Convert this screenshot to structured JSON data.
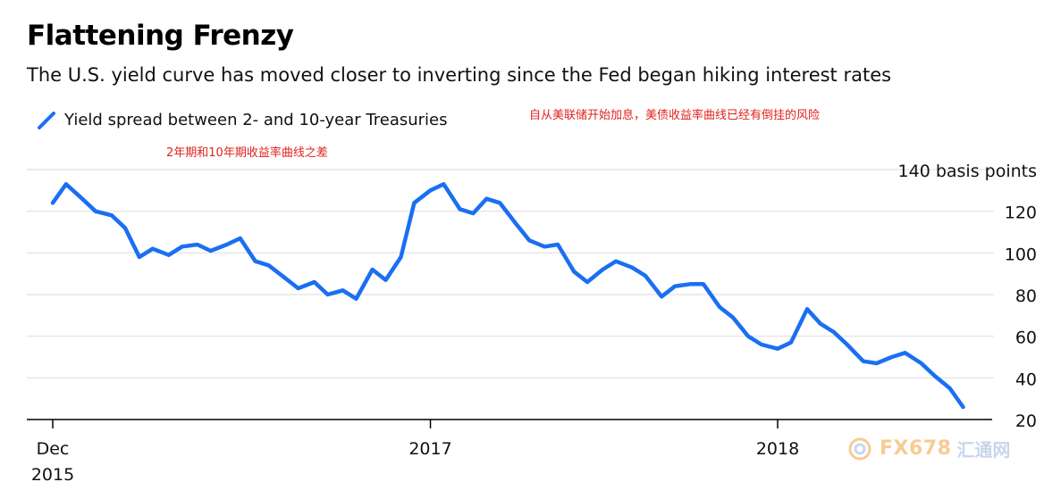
{
  "header": {
    "title": "Flattening Frenzy",
    "subtitle": "The U.S. yield curve has moved closer to inverting since the Fed began hiking interest rates"
  },
  "legend": {
    "label": "Yield spread between 2- and 10-year Treasuries"
  },
  "annotations": {
    "cn_top": "自从美联储开始加息，美债收益率曲线已经有倒挂的风险",
    "cn_legend": "2年期和10年期收益率曲线之差"
  },
  "watermark": {
    "text": "FX678",
    "cn": "汇通网",
    "icon": "fx678-logo-icon"
  },
  "colors": {
    "line": "#1a6ff2",
    "grid": "#e6e6e6",
    "axis": "#000000",
    "annotation": "#e0231c"
  },
  "chart_data": {
    "type": "line",
    "title": "Flattening Frenzy",
    "subtitle": "The U.S. yield curve has moved closer to inverting since the Fed began hiking interest rates",
    "ylabel_top": "140 basis points",
    "ylim": [
      20,
      140
    ],
    "yticks": [
      20,
      40,
      60,
      80,
      100,
      120,
      140
    ],
    "ytick_labels": [
      "20",
      "40",
      "60",
      "80",
      "100",
      "120",
      "140 basis points"
    ],
    "xticks": [
      {
        "date": "2015-12",
        "label_line1": "Dec",
        "label_line2": "2015"
      },
      {
        "date": "2017-01",
        "label_line1": "2017",
        "label_line2": ""
      },
      {
        "date": "2018-01",
        "label_line1": "2018",
        "label_line2": ""
      }
    ],
    "grid": "horizontal",
    "legend_position": "top-left",
    "series": [
      {
        "name": "Yield spread between 2- and 10-year Treasuries",
        "x": [
          "2015-12-01",
          "2015-12-15",
          "2016-01-01",
          "2016-01-15",
          "2016-02-01",
          "2016-02-15",
          "2016-03-01",
          "2016-03-15",
          "2016-04-01",
          "2016-04-15",
          "2016-05-01",
          "2016-05-15",
          "2016-06-01",
          "2016-06-15",
          "2016-07-01",
          "2016-07-15",
          "2016-08-01",
          "2016-08-15",
          "2016-09-01",
          "2016-09-15",
          "2016-10-01",
          "2016-10-15",
          "2016-11-01",
          "2016-11-15",
          "2016-12-01",
          "2016-12-15",
          "2017-01-01",
          "2017-01-15",
          "2017-02-01",
          "2017-02-15",
          "2017-03-01",
          "2017-03-15",
          "2017-04-01",
          "2017-04-15",
          "2017-05-01",
          "2017-05-15",
          "2017-06-01",
          "2017-06-15",
          "2017-07-01",
          "2017-07-15",
          "2017-08-01",
          "2017-08-15",
          "2017-09-01",
          "2017-09-15",
          "2017-10-01",
          "2017-10-15",
          "2017-11-01",
          "2017-11-15",
          "2017-12-01",
          "2017-12-15",
          "2018-01-01",
          "2018-01-15",
          "2018-02-01",
          "2018-02-15",
          "2018-03-01",
          "2018-03-15",
          "2018-04-01",
          "2018-04-15",
          "2018-05-01",
          "2018-05-15",
          "2018-06-01",
          "2018-06-15",
          "2018-07-01",
          "2018-07-15"
        ],
        "values": [
          124,
          133,
          126,
          120,
          118,
          112,
          98,
          102,
          99,
          103,
          104,
          101,
          104,
          107,
          96,
          94,
          88,
          83,
          86,
          80,
          82,
          78,
          92,
          87,
          98,
          124,
          130,
          133,
          121,
          119,
          126,
          124,
          114,
          106,
          103,
          104,
          91,
          86,
          92,
          96,
          93,
          89,
          79,
          84,
          85,
          85,
          74,
          69,
          60,
          56,
          54,
          57,
          73,
          66,
          62,
          56,
          48,
          47,
          50,
          52,
          47,
          41,
          35,
          26
        ]
      }
    ]
  }
}
